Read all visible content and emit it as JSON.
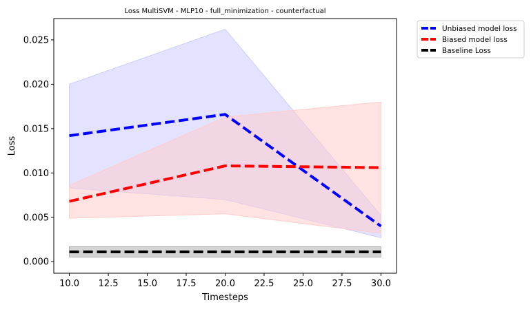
{
  "chart_data": {
    "type": "line",
    "title": "Loss MultiSVM - MLP10 - full_minimization - counterfactual",
    "xlabel": "Timesteps",
    "ylabel": "Loss",
    "xlim": [
      9.0,
      31.0
    ],
    "ylim": [
      -0.0013,
      0.0274
    ],
    "x": [
      10,
      20,
      30
    ],
    "xticks": [
      10.0,
      12.5,
      15.0,
      17.5,
      20.0,
      22.5,
      25.0,
      27.5,
      30.0
    ],
    "xtick_labels": [
      "10.0",
      "12.5",
      "15.0",
      "17.5",
      "20.0",
      "22.5",
      "25.0",
      "27.5",
      "30.0"
    ],
    "yticks": [
      0.0,
      0.005,
      0.01,
      0.015,
      0.02,
      0.025
    ],
    "ytick_labels": [
      "0.000",
      "0.005",
      "0.010",
      "0.015",
      "0.020",
      "0.025"
    ],
    "grid": false,
    "legend_position": "outside-top-right",
    "series": [
      {
        "name": "Unbiased model loss",
        "color": "#0000ff",
        "values": [
          0.0142,
          0.0166,
          0.004
        ],
        "band_upper": [
          0.02,
          0.0262,
          0.0052
        ],
        "band_lower": [
          0.0083,
          0.007,
          0.0027
        ],
        "band_color": "#ccccff"
      },
      {
        "name": "Biased model loss",
        "color": "#ff0000",
        "values": [
          0.0068,
          0.0108,
          0.0106
        ],
        "band_upper": [
          0.0086,
          0.0163,
          0.018
        ],
        "band_lower": [
          0.0049,
          0.0054,
          0.0032
        ],
        "band_color": "#ffcccc"
      },
      {
        "name": "Baseline Loss",
        "color": "#000000",
        "values": [
          0.0011,
          0.0011,
          0.0011
        ],
        "band_upper": [
          0.0017,
          0.0017,
          0.0017
        ],
        "band_lower": [
          0.0005,
          0.0005,
          0.0005
        ],
        "band_color": "#b0b0b0"
      }
    ]
  }
}
